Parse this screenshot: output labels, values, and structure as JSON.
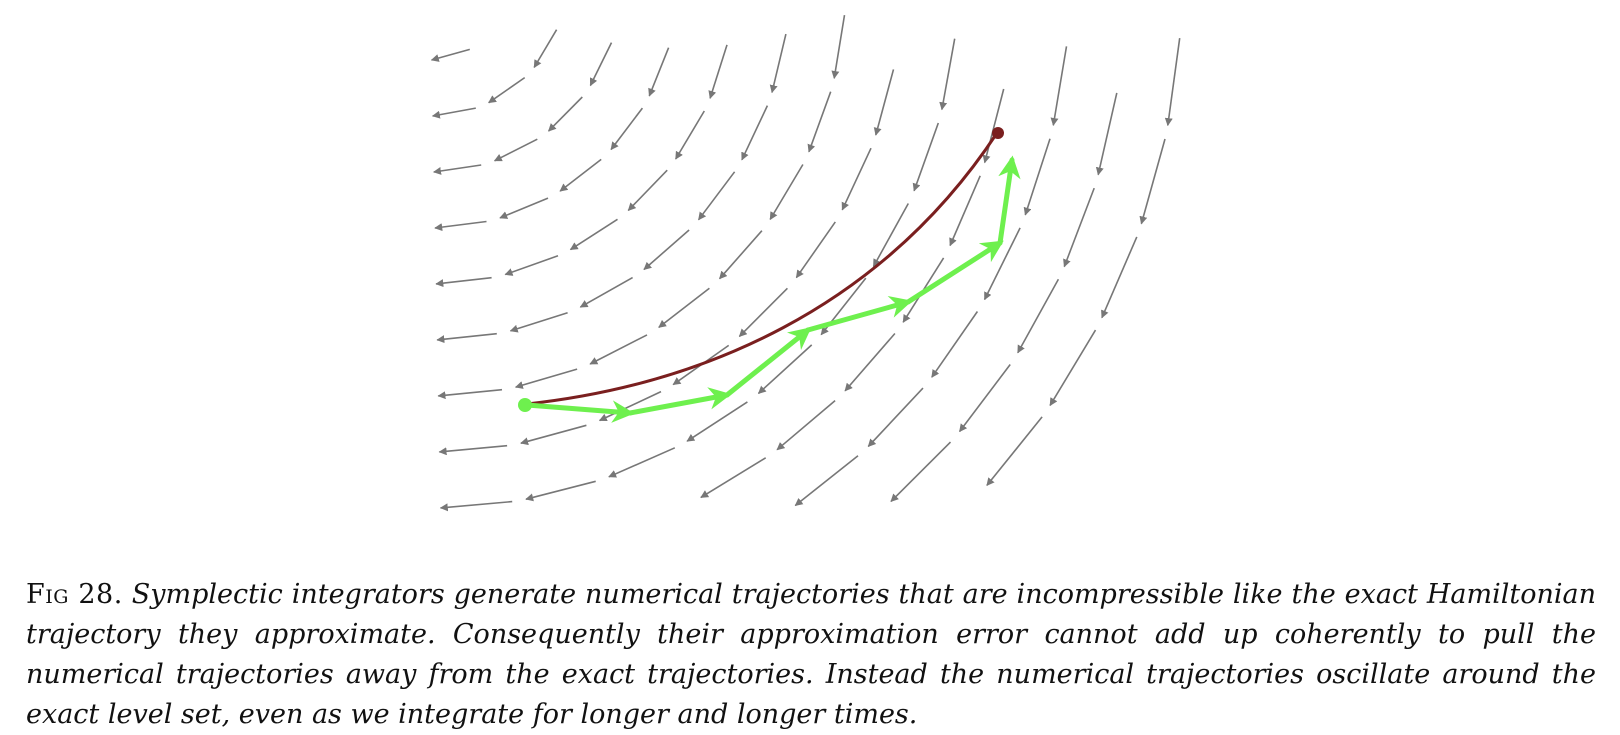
{
  "figure": {
    "field_arrow_color": "#777777",
    "exact_trajectory_color": "#7a1f1f",
    "numerical_trajectory_color": "#6ef04e",
    "start_color": "#6ef04e",
    "end_color": "#7a1f1f"
  },
  "caption": {
    "label": "Fig 28.",
    "text": "Symplectic integrators generate numerical trajectories that are incompressible like the exact Hamiltonian trajectory they approximate. Consequently their approximation error cannot add up coherently to pull the numerical trajectories away from the exact trajectories. Instead the numerical trajectories oscillate around the exact level set, even as we integrate for longer and longer times."
  }
}
